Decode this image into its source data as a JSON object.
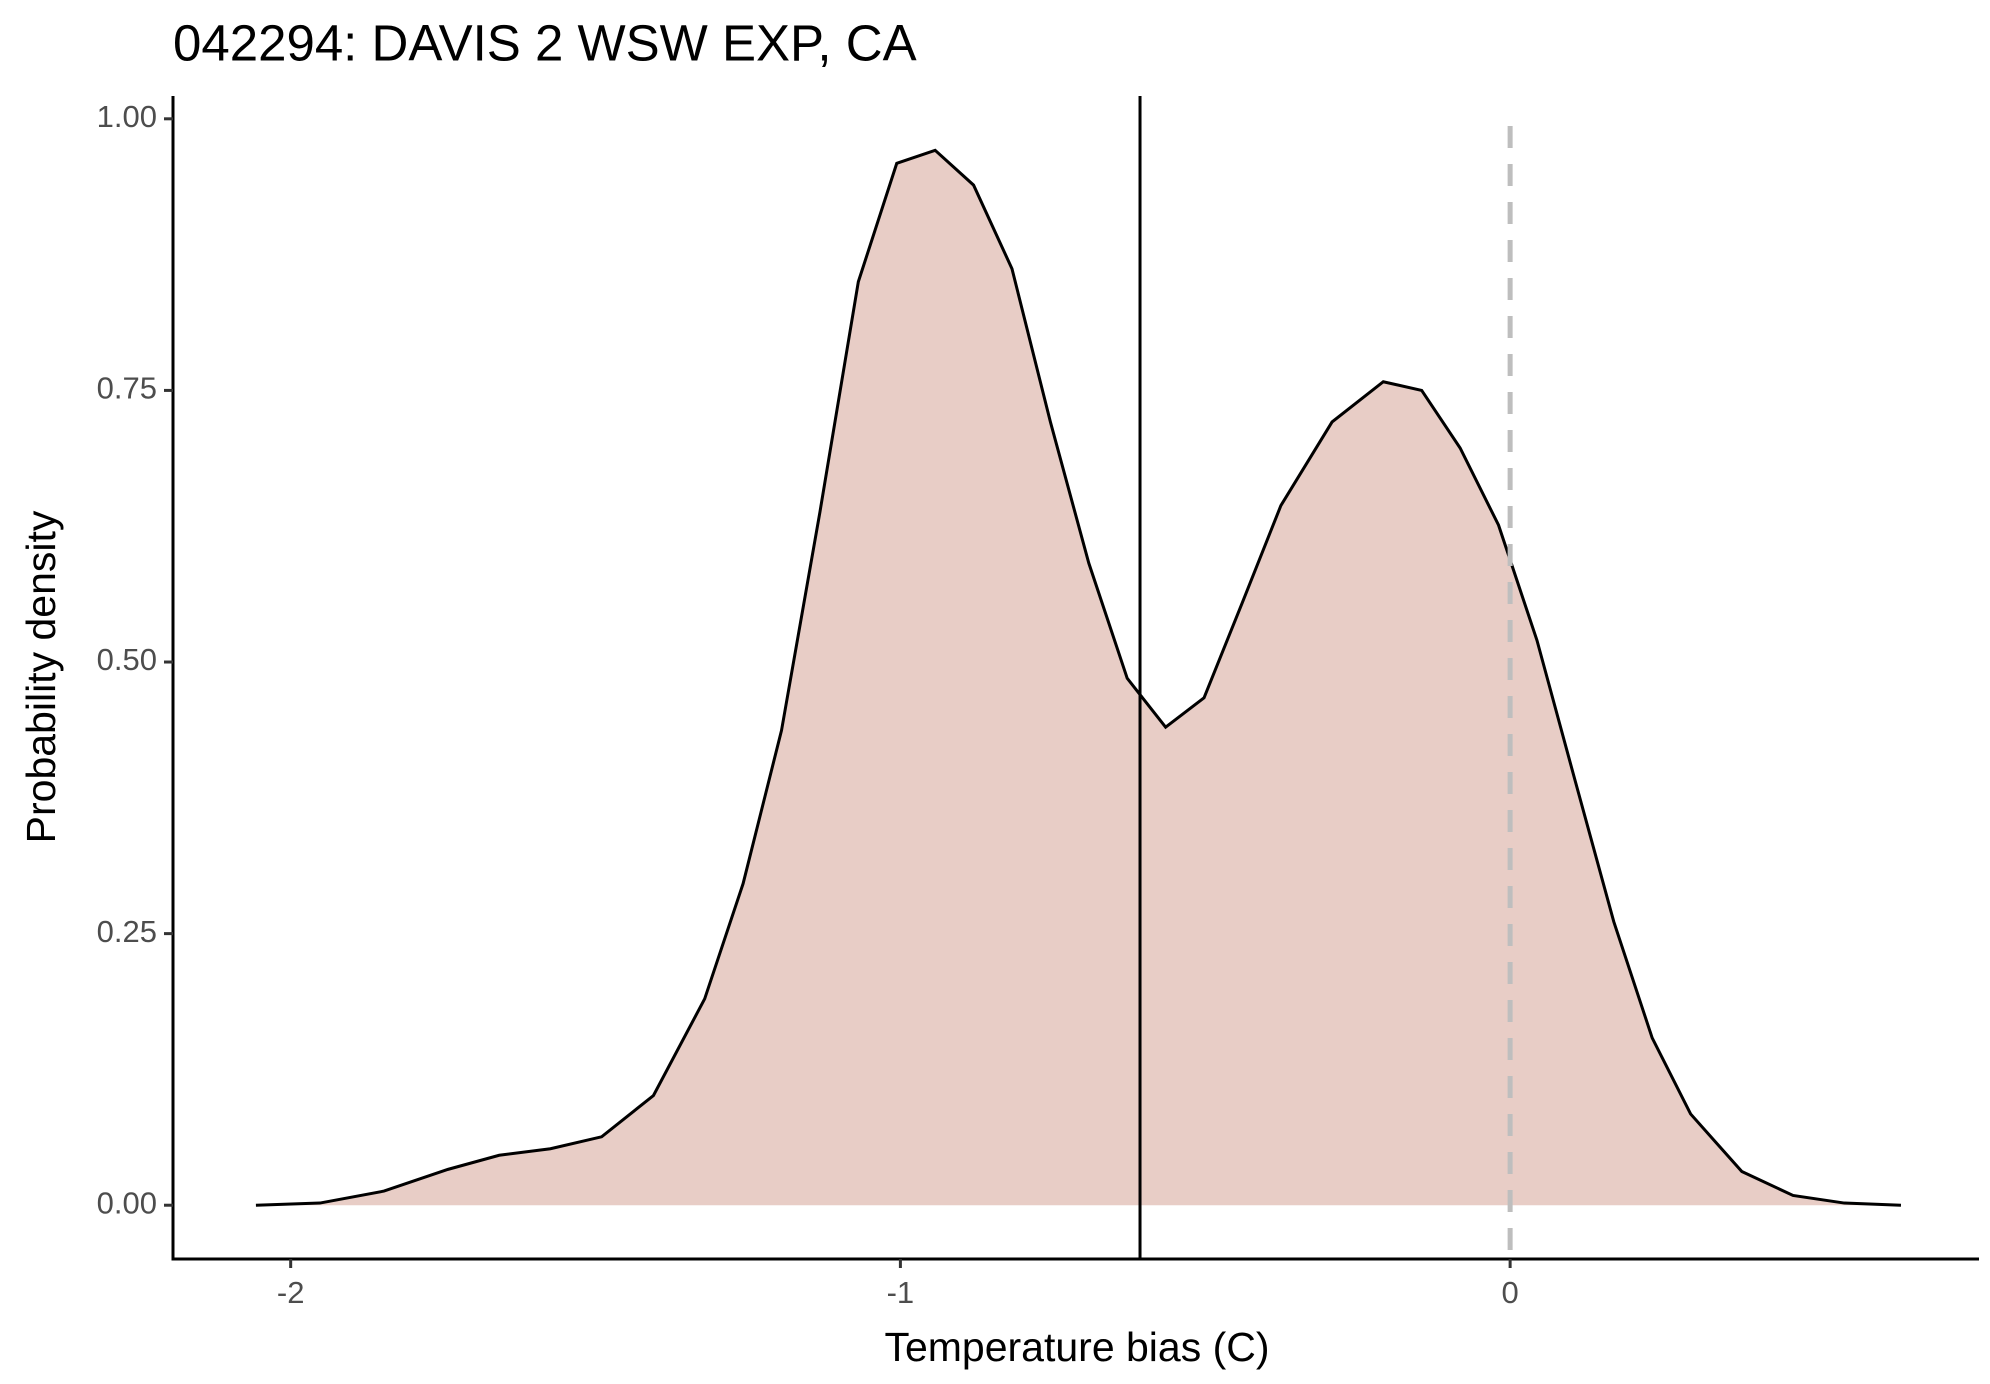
{
  "chart_data": {
    "type": "density",
    "title": "042294: DAVIS 2 WSW EXP, CA",
    "x_label": "Temperature bias (C)",
    "y_label": "Probability density",
    "x": [
      -2.057,
      -1.952,
      -1.847,
      -1.742,
      -1.658,
      -1.574,
      -1.49,
      -1.405,
      -1.321,
      -1.258,
      -1.195,
      -1.132,
      -1.069,
      -1.006,
      -0.943,
      -0.88,
      -0.817,
      -0.754,
      -0.691,
      -0.628,
      -0.565,
      -0.502,
      -0.439,
      -0.376,
      -0.292,
      -0.208,
      -0.145,
      -0.082,
      -0.019,
      0.044,
      0.107,
      0.17,
      0.233,
      0.296,
      0.38,
      0.464,
      0.548,
      0.641
    ],
    "values": [
      0,
      0.002,
      0.013,
      0.033,
      0.046,
      0.052,
      0.063,
      0.101,
      0.19,
      0.296,
      0.437,
      0.638,
      0.85,
      0.959,
      0.971,
      0.939,
      0.862,
      0.721,
      0.591,
      0.485,
      0.44,
      0.467,
      0.555,
      0.644,
      0.721,
      0.758,
      0.75,
      0.697,
      0.626,
      0.52,
      0.39,
      0.261,
      0.154,
      0.084,
      0.031,
      0.009,
      0.002,
      0
    ],
    "fill": "#e8cdc6",
    "line_color": "#000000",
    "vlines": [
      {
        "x": -0.607,
        "color": "#000000",
        "dashed": false
      },
      {
        "x": 0,
        "color": "#bebebe",
        "dashed": true
      }
    ],
    "xlim": [
      -2.193,
      0.769
    ],
    "ylim": [
      -0.0495,
      1.021
    ],
    "xticks": [
      -2,
      -1,
      0
    ],
    "yticks": [
      {
        "value": 0,
        "label": "0.00"
      },
      {
        "value": 0.25,
        "label": "0.25"
      },
      {
        "value": 0.5,
        "label": "0.50"
      },
      {
        "value": 0.75,
        "label": "0.75"
      },
      {
        "value": 1,
        "label": "1.00"
      }
    ],
    "grid": false
  }
}
